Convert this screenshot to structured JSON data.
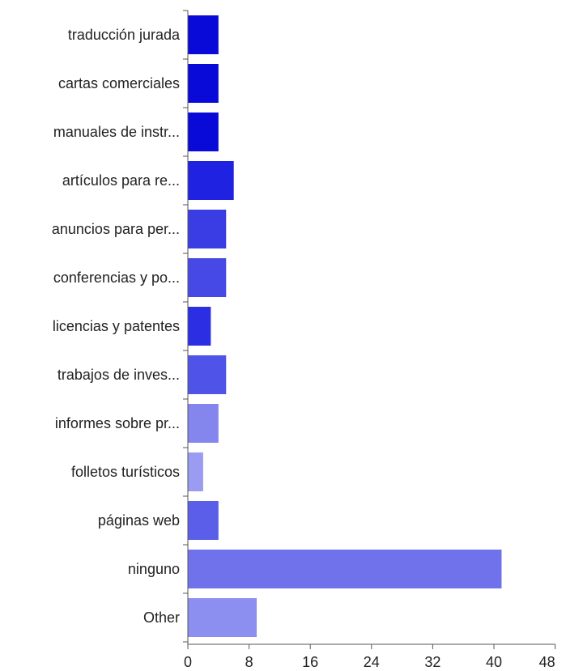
{
  "chart_data": {
    "type": "bar",
    "orientation": "horizontal",
    "title": "",
    "xlabel": "",
    "ylabel": "",
    "categories": [
      "traducción jurada",
      "cartas comerciales",
      "manuales de instr...",
      "artículos para re...",
      "anuncios para per...",
      "conferencias y po...",
      "licencias y patentes",
      "trabajos de inves...",
      "informes sobre pr...",
      "folletos turísticos",
      "páginas web",
      "ninguno",
      "Other"
    ],
    "values": [
      4,
      4,
      4,
      6,
      5,
      5,
      3,
      5,
      4,
      2,
      4,
      41,
      9
    ],
    "colors": [
      "#0a0ad8",
      "#0a0ad8",
      "#0a0ad8",
      "#1f22e0",
      "#3a3de4",
      "#4649e6",
      "#2b2ee2",
      "#4f53e8",
      "#8486ee",
      "#9a9cf2",
      "#5a5ee8",
      "#7072ec",
      "#8d8ff0"
    ],
    "xlim": [
      0,
      48
    ],
    "xticks": [
      0,
      8,
      16,
      24,
      32,
      40,
      48
    ],
    "grid": false,
    "legend": "none"
  }
}
